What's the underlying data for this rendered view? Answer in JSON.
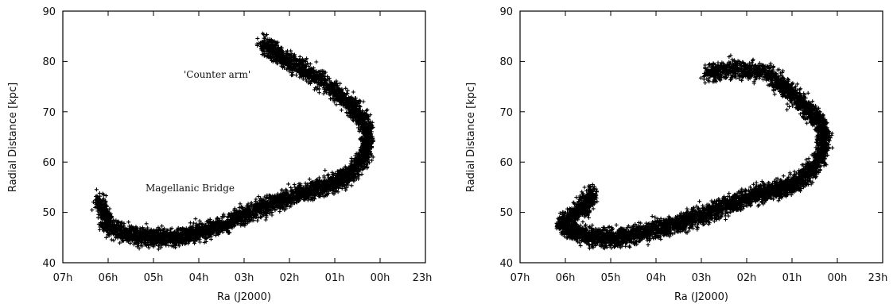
{
  "chart_data": [
    {
      "type": "scatter",
      "xlabel": "Ra (J2000)",
      "ylabel": "Radial Distance [kpc]",
      "x_tick_labels": [
        "07h",
        "06h",
        "05h",
        "04h",
        "03h",
        "02h",
        "01h",
        "00h",
        "23h"
      ],
      "x_tick_values": [
        7,
        6,
        5,
        4,
        3,
        2,
        1,
        0,
        -1
      ],
      "xlim": [
        7,
        -1
      ],
      "y_tick_labels": [
        "40",
        "50",
        "60",
        "70",
        "80",
        "90"
      ],
      "ylim": [
        40,
        90
      ],
      "annotations": [
        {
          "text": "'Counter arm'",
          "x": 2.7,
          "y": 78.5
        },
        {
          "text": "Magellanic Bridge",
          "x": 4.9,
          "y": 54.5
        }
      ],
      "marker": "+",
      "color": "#000000",
      "ridge_points": [
        {
          "x": 6.2,
          "y": 52.5
        },
        {
          "x": 6.0,
          "y": 47.0
        },
        {
          "x": 5.5,
          "y": 45.5
        },
        {
          "x": 5.0,
          "y": 45.0
        },
        {
          "x": 4.5,
          "y": 45.0
        },
        {
          "x": 4.0,
          "y": 46.0
        },
        {
          "x": 3.5,
          "y": 47.5
        },
        {
          "x": 3.0,
          "y": 49.5
        },
        {
          "x": 2.5,
          "y": 51.5
        },
        {
          "x": 2.0,
          "y": 53.0
        },
        {
          "x": 1.5,
          "y": 54.5
        },
        {
          "x": 1.0,
          "y": 56.0
        },
        {
          "x": 0.6,
          "y": 58.0
        },
        {
          "x": 0.3,
          "y": 62.0
        },
        {
          "x": 0.3,
          "y": 67.0
        },
        {
          "x": 0.6,
          "y": 71.0
        },
        {
          "x": 1.1,
          "y": 75.0
        },
        {
          "x": 1.7,
          "y": 78.5
        },
        {
          "x": 2.2,
          "y": 81.0
        },
        {
          "x": 2.6,
          "y": 83.5
        }
      ]
    },
    {
      "type": "scatter",
      "xlabel": "Ra (J2000)",
      "ylabel": "Radial Distance [kpc]",
      "x_tick_labels": [
        "07h",
        "06h",
        "05h",
        "04h",
        "03h",
        "02h",
        "01h",
        "00h",
        "23h"
      ],
      "x_tick_values": [
        7,
        6,
        5,
        4,
        3,
        2,
        1,
        0,
        -1
      ],
      "xlim": [
        7,
        -1
      ],
      "y_tick_labels": [
        "40",
        "50",
        "60",
        "70",
        "80",
        "90"
      ],
      "ylim": [
        40,
        90
      ],
      "annotations": [],
      "marker": "+",
      "color": "#000000",
      "ridge_points": [
        {
          "x": 5.4,
          "y": 54.0
        },
        {
          "x": 5.6,
          "y": 51.0
        },
        {
          "x": 6.1,
          "y": 48.0
        },
        {
          "x": 5.8,
          "y": 46.0
        },
        {
          "x": 5.3,
          "y": 45.0
        },
        {
          "x": 4.8,
          "y": 45.0
        },
        {
          "x": 4.3,
          "y": 46.0
        },
        {
          "x": 3.8,
          "y": 47.0
        },
        {
          "x": 3.3,
          "y": 48.5
        },
        {
          "x": 2.8,
          "y": 50.0
        },
        {
          "x": 2.3,
          "y": 52.0
        },
        {
          "x": 1.8,
          "y": 53.5
        },
        {
          "x": 1.3,
          "y": 54.5
        },
        {
          "x": 0.9,
          "y": 56.0
        },
        {
          "x": 0.5,
          "y": 59.0
        },
        {
          "x": 0.3,
          "y": 63.0
        },
        {
          "x": 0.35,
          "y": 67.5
        },
        {
          "x": 0.7,
          "y": 71.0
        },
        {
          "x": 1.1,
          "y": 74.5
        },
        {
          "x": 1.6,
          "y": 78.0
        },
        {
          "x": 2.3,
          "y": 78.5
        },
        {
          "x": 2.9,
          "y": 77.5
        }
      ]
    }
  ]
}
